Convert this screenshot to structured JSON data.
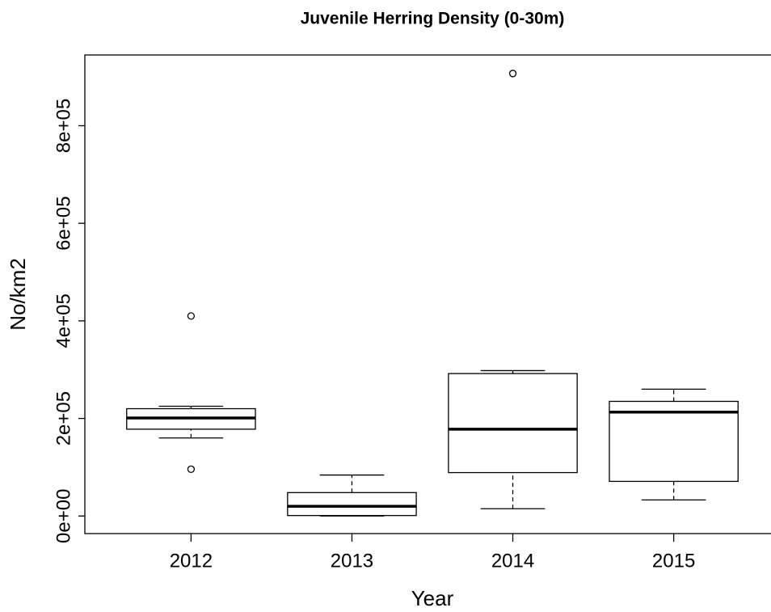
{
  "chart_data": {
    "type": "boxplot",
    "title": "Juvenile Herring Density (0-30m)",
    "x_label": "Year",
    "y_label": "No/km2",
    "categories": [
      "2012",
      "2013",
      "2014",
      "2015"
    ],
    "boxes": [
      {
        "min": 160000,
        "q1": 178000,
        "median": 201000,
        "q3": 220000,
        "max": 225000,
        "outliers": [
          410000,
          96000
        ]
      },
      {
        "min": 0,
        "q1": 1000,
        "median": 20000,
        "q3": 48000,
        "max": 84000,
        "outliers": []
      },
      {
        "min": 15000,
        "q1": 89000,
        "median": 178000,
        "q3": 292000,
        "max": 298000,
        "outliers": [
          907000
        ]
      },
      {
        "min": 33000,
        "q1": 71000,
        "median": 213000,
        "q3": 235000,
        "max": 260000,
        "outliers": []
      }
    ],
    "ylim": [
      -36000,
      945000
    ],
    "yticks": [
      {
        "value": 0,
        "label": "0e+00"
      },
      {
        "value": 200000,
        "label": "2e+05"
      },
      {
        "value": 400000,
        "label": "4e+05"
      },
      {
        "value": 600000,
        "label": "6e+05"
      },
      {
        "value": 800000,
        "label": "8e+05"
      }
    ],
    "color": "#000000"
  }
}
